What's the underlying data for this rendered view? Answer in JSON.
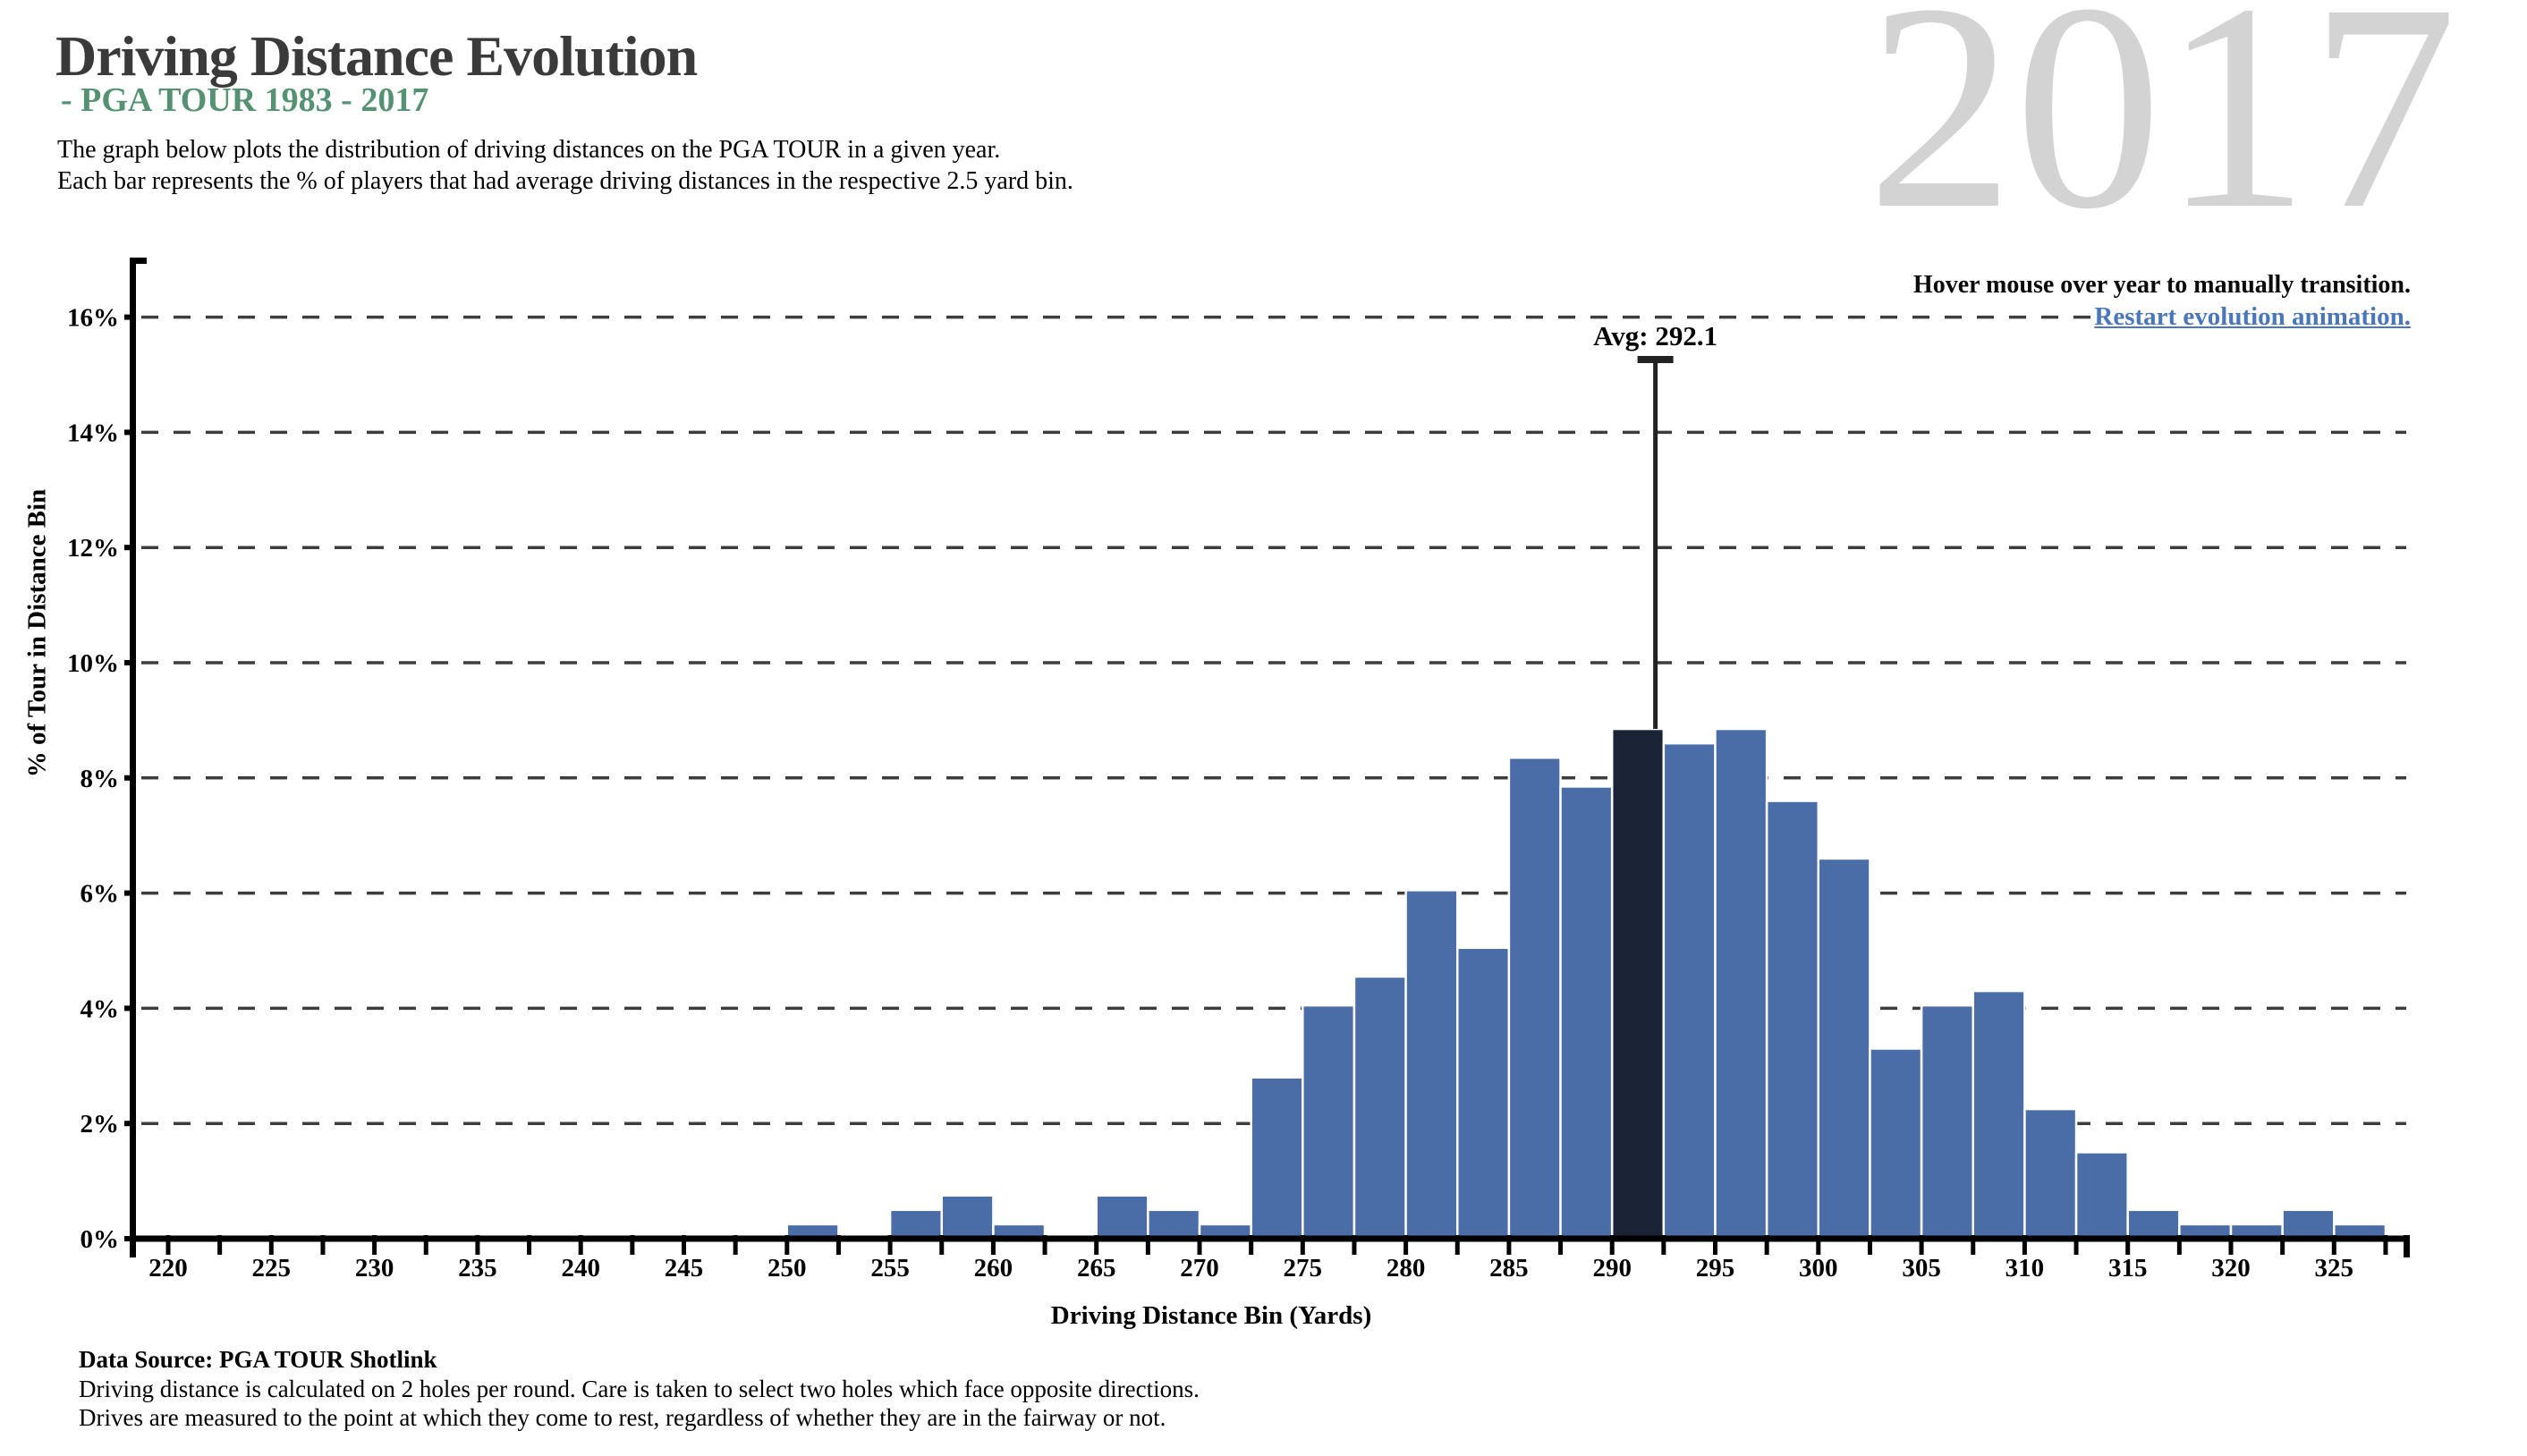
{
  "header": {
    "title": "Driving Distance Evolution",
    "subtitle": "- PGA TOUR 1983 - 2017",
    "description_lines": [
      "The graph below plots the distribution of driving distances on the PGA TOUR in a given year.",
      "Each bar represents the % of players that had average driving distances in the respective 2.5 yard bin."
    ]
  },
  "year_display": {
    "value": "2017"
  },
  "controls": {
    "hover_hint": "Hover mouse over year to manually transition.",
    "restart_link": "Restart evolution animation."
  },
  "chart_data": {
    "type": "bar",
    "title": "Driving distance distribution for 2017",
    "xlabel": "Driving Distance Bin (Yards)",
    "ylabel": "% of Tour in Distance Bin",
    "x_major_ticks": [
      220,
      225,
      230,
      235,
      240,
      245,
      250,
      255,
      260,
      265,
      270,
      275,
      280,
      285,
      290,
      295,
      300,
      305,
      310,
      315,
      320,
      325
    ],
    "x_minor_tick_range": [
      220,
      327.5
    ],
    "x_minor_tick_step": 2.5,
    "y_tick_values": [
      0,
      2,
      4,
      6,
      8,
      10,
      12,
      14,
      16
    ],
    "y_tick_labels": [
      "0%",
      "2%",
      "4%",
      "6%",
      "8%",
      "10%",
      "12%",
      "14%",
      "16%"
    ],
    "xlim": [
      218,
      328.6
    ],
    "ylim": [
      0,
      17
    ],
    "bin_width": 2.5,
    "grid": "dashed-horizontal",
    "bars": [
      {
        "start": 250,
        "pct": 0.25
      },
      {
        "start": 255,
        "pct": 0.5
      },
      {
        "start": 257.5,
        "pct": 0.75
      },
      {
        "start": 260,
        "pct": 0.25
      },
      {
        "start": 265,
        "pct": 0.75
      },
      {
        "start": 267.5,
        "pct": 0.5
      },
      {
        "start": 270,
        "pct": 0.25
      },
      {
        "start": 272.5,
        "pct": 2.8
      },
      {
        "start": 275,
        "pct": 4.05
      },
      {
        "start": 277.5,
        "pct": 4.55
      },
      {
        "start": 280,
        "pct": 6.05
      },
      {
        "start": 282.5,
        "pct": 5.05
      },
      {
        "start": 285,
        "pct": 8.35
      },
      {
        "start": 287.5,
        "pct": 7.85
      },
      {
        "start": 290,
        "pct": 8.85
      },
      {
        "start": 292.5,
        "pct": 8.6
      },
      {
        "start": 295,
        "pct": 8.85
      },
      {
        "start": 297.5,
        "pct": 7.6
      },
      {
        "start": 300,
        "pct": 6.6
      },
      {
        "start": 302.5,
        "pct": 3.3
      },
      {
        "start": 305,
        "pct": 4.05
      },
      {
        "start": 307.5,
        "pct": 4.3
      },
      {
        "start": 310,
        "pct": 2.25
      },
      {
        "start": 312.5,
        "pct": 1.5
      },
      {
        "start": 315,
        "pct": 0.5
      },
      {
        "start": 317.5,
        "pct": 0.25
      },
      {
        "start": 320,
        "pct": 0.25
      },
      {
        "start": 322.5,
        "pct": 0.5
      },
      {
        "start": 325,
        "pct": 0.25
      }
    ],
    "highlight_bin_start": 290,
    "average": {
      "label": "Avg: 292.1",
      "value": 292.1
    },
    "colors": {
      "bar": "#4a6da8",
      "bar_highlight": "#1b2336",
      "bar_stroke": "#ffffff",
      "grid": "#3d3d3d",
      "axis": "#000000",
      "avg_line": "#222222",
      "avg_label": "#1e2c4e",
      "year_watermark": "#d3d3d3",
      "subtitle_green": "#559272",
      "link_blue": "#4a76bc"
    }
  },
  "footer": {
    "source": "Data Source: PGA TOUR Shotlink",
    "notes": [
      "Driving distance is calculated on 2 holes per round. Care is taken to select two holes which face opposite directions.",
      "Drives are measured to the point at which they come to rest, regardless of whether they are in the fairway or not."
    ]
  }
}
